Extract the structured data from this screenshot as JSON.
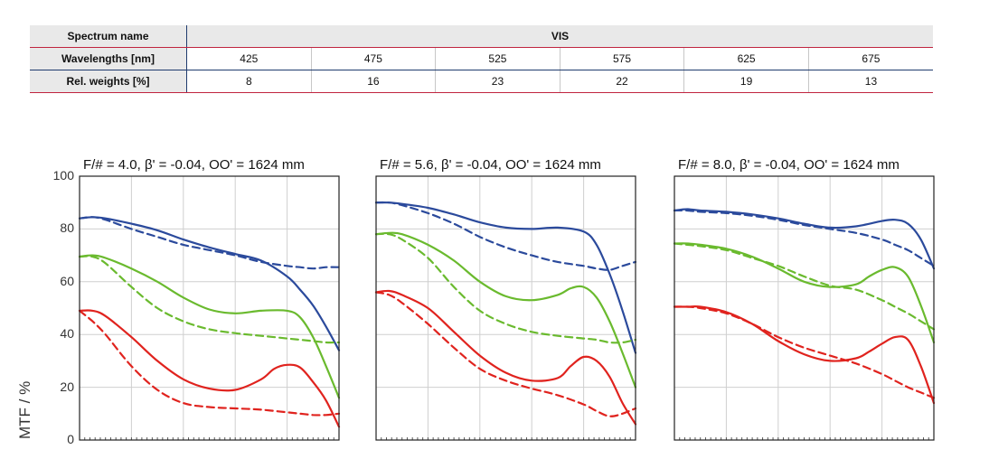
{
  "spectrum_table": {
    "header_spectrum": "Spectrum name",
    "spectrum_value": "VIS",
    "header_wavelengths": "Wavelengths [nm]",
    "wavelengths": [
      "425",
      "475",
      "525",
      "575",
      "625",
      "675"
    ],
    "header_weights": "Rel. weights [%]",
    "weights": [
      "8",
      "16",
      "23",
      "22",
      "19",
      "13"
    ]
  },
  "chart_data": [
    {
      "type": "line",
      "title": "F/# = 4.0, β' = -0.04, OO' = 1624 mm",
      "ylabel": "MTF / %",
      "yticks": [
        "100",
        "80",
        "60",
        "40",
        "20",
        "0"
      ],
      "ylim": [
        0,
        100
      ],
      "xlim": [
        0,
        1
      ],
      "grid": true,
      "series": [
        {
          "color": "#2b4a9c",
          "dash": false,
          "x": [
            0,
            0.05,
            0.1,
            0.2,
            0.3,
            0.4,
            0.5,
            0.6,
            0.7,
            0.8,
            0.85,
            0.9,
            0.95,
            1.0
          ],
          "y": [
            84,
            84.5,
            84,
            82,
            79.5,
            76,
            73,
            70.5,
            68,
            62,
            57,
            51,
            43,
            34
          ]
        },
        {
          "color": "#2b4a9c",
          "dash": true,
          "x": [
            0,
            0.05,
            0.1,
            0.2,
            0.3,
            0.4,
            0.5,
            0.6,
            0.7,
            0.8,
            0.85,
            0.9,
            0.95,
            1.0
          ],
          "y": [
            84,
            84.5,
            83.5,
            80,
            77,
            74,
            72,
            70,
            67.5,
            66,
            65.5,
            65,
            65.5,
            65.5
          ]
        },
        {
          "color": "#6aba2e",
          "dash": false,
          "x": [
            0,
            0.05,
            0.1,
            0.2,
            0.3,
            0.4,
            0.5,
            0.6,
            0.7,
            0.8,
            0.85,
            0.9,
            0.95,
            1.0
          ],
          "y": [
            69.5,
            70,
            69,
            65,
            60,
            54,
            49.5,
            48,
            49,
            49,
            46.5,
            39,
            28,
            16
          ]
        },
        {
          "color": "#6aba2e",
          "dash": true,
          "x": [
            0,
            0.05,
            0.1,
            0.2,
            0.3,
            0.4,
            0.5,
            0.6,
            0.7,
            0.8,
            0.85,
            0.9,
            0.95,
            1.0
          ],
          "y": [
            69.5,
            69.5,
            67,
            58,
            50,
            45,
            42,
            40.5,
            39.5,
            38.5,
            38,
            37.5,
            37,
            37
          ]
        },
        {
          "color": "#e0231e",
          "dash": false,
          "x": [
            0,
            0.05,
            0.1,
            0.2,
            0.3,
            0.4,
            0.5,
            0.6,
            0.7,
            0.75,
            0.8,
            0.85,
            0.9,
            0.95,
            1.0
          ],
          "y": [
            49,
            49,
            47,
            39,
            30,
            23,
            19.5,
            19,
            23,
            27,
            28.5,
            27.5,
            22,
            15,
            5
          ]
        },
        {
          "color": "#e0231e",
          "dash": true,
          "x": [
            0,
            0.05,
            0.1,
            0.2,
            0.3,
            0.4,
            0.5,
            0.6,
            0.7,
            0.8,
            0.85,
            0.9,
            0.95,
            1.0
          ],
          "y": [
            49,
            45,
            40,
            28,
            19,
            14,
            12.5,
            12,
            11.5,
            10.5,
            10,
            9.5,
            9.5,
            10
          ]
        }
      ]
    },
    {
      "type": "line",
      "title": "F/# = 5.6, β' = -0.04, OO' = 1624 mm",
      "ylabel": "MTF / %",
      "yticks": [
        "100",
        "80",
        "60",
        "40",
        "20",
        "0"
      ],
      "ylim": [
        0,
        100
      ],
      "xlim": [
        0,
        1
      ],
      "grid": true,
      "series": [
        {
          "color": "#2b4a9c",
          "dash": false,
          "x": [
            0,
            0.05,
            0.1,
            0.2,
            0.3,
            0.4,
            0.5,
            0.6,
            0.7,
            0.8,
            0.85,
            0.9,
            0.95,
            1.0
          ],
          "y": [
            90,
            90,
            89.5,
            88,
            85.5,
            82.5,
            80.5,
            80,
            80.5,
            79,
            74,
            63,
            49,
            33
          ]
        },
        {
          "color": "#2b4a9c",
          "dash": true,
          "x": [
            0,
            0.05,
            0.1,
            0.2,
            0.3,
            0.4,
            0.5,
            0.6,
            0.7,
            0.8,
            0.85,
            0.9,
            0.95,
            1.0
          ],
          "y": [
            90,
            90,
            89,
            86,
            82,
            77,
            73,
            70,
            67.5,
            66,
            65,
            64.5,
            66,
            67.5
          ]
        },
        {
          "color": "#6aba2e",
          "dash": false,
          "x": [
            0,
            0.05,
            0.1,
            0.2,
            0.3,
            0.4,
            0.5,
            0.6,
            0.7,
            0.75,
            0.8,
            0.85,
            0.9,
            0.95,
            1.0
          ],
          "y": [
            78,
            78.5,
            78,
            74,
            68,
            60,
            54.5,
            53,
            55,
            57.5,
            58,
            54,
            45,
            33,
            20
          ]
        },
        {
          "color": "#6aba2e",
          "dash": true,
          "x": [
            0,
            0.05,
            0.1,
            0.2,
            0.3,
            0.4,
            0.5,
            0.6,
            0.7,
            0.8,
            0.85,
            0.9,
            0.95,
            1.0
          ],
          "y": [
            78,
            78,
            76,
            69,
            58,
            49,
            44,
            41,
            39.5,
            38.5,
            38,
            37,
            37,
            38
          ]
        },
        {
          "color": "#e0231e",
          "dash": false,
          "x": [
            0,
            0.05,
            0.1,
            0.2,
            0.3,
            0.4,
            0.5,
            0.6,
            0.7,
            0.75,
            0.8,
            0.85,
            0.9,
            0.95,
            1.0
          ],
          "y": [
            56,
            56.5,
            55,
            50,
            41,
            32,
            25.5,
            22.5,
            23.5,
            28,
            31.5,
            30,
            24,
            14,
            6
          ]
        },
        {
          "color": "#e0231e",
          "dash": true,
          "x": [
            0,
            0.05,
            0.1,
            0.2,
            0.3,
            0.4,
            0.5,
            0.6,
            0.7,
            0.8,
            0.85,
            0.9,
            0.95,
            1.0
          ],
          "y": [
            56,
            55,
            52,
            44,
            35,
            27,
            22.5,
            19.5,
            17,
            13.5,
            11,
            9,
            10,
            12
          ]
        }
      ]
    },
    {
      "type": "line",
      "title": "F/# = 8.0, β' = -0.04, OO' = 1624 mm",
      "ylabel": "MTF / %",
      "yticks": [
        "100",
        "80",
        "60",
        "40",
        "20",
        "0"
      ],
      "ylim": [
        0,
        100
      ],
      "xlim": [
        0,
        1
      ],
      "grid": true,
      "series": [
        {
          "color": "#2b4a9c",
          "dash": false,
          "x": [
            0,
            0.05,
            0.1,
            0.2,
            0.3,
            0.4,
            0.5,
            0.6,
            0.7,
            0.8,
            0.85,
            0.9,
            0.95,
            1.0
          ],
          "y": [
            87,
            87.5,
            87,
            86.5,
            85.5,
            84,
            82,
            80.5,
            81,
            83,
            83.5,
            82,
            76,
            65
          ]
        },
        {
          "color": "#2b4a9c",
          "dash": true,
          "x": [
            0,
            0.05,
            0.1,
            0.2,
            0.3,
            0.4,
            0.5,
            0.6,
            0.7,
            0.8,
            0.85,
            0.9,
            0.95,
            1.0
          ],
          "y": [
            87,
            87,
            86.5,
            86,
            85,
            83.5,
            81.5,
            80,
            78.5,
            76,
            74,
            72,
            69,
            66
          ]
        },
        {
          "color": "#6aba2e",
          "dash": false,
          "x": [
            0,
            0.05,
            0.1,
            0.2,
            0.3,
            0.4,
            0.5,
            0.6,
            0.7,
            0.75,
            0.8,
            0.85,
            0.9,
            0.95,
            1.0
          ],
          "y": [
            74.5,
            74.5,
            74,
            72.5,
            69.5,
            65,
            60,
            58,
            59,
            62,
            64.5,
            65.5,
            62,
            51,
            37
          ]
        },
        {
          "color": "#6aba2e",
          "dash": true,
          "x": [
            0,
            0.05,
            0.1,
            0.2,
            0.3,
            0.4,
            0.5,
            0.6,
            0.7,
            0.8,
            0.85,
            0.9,
            0.95,
            1.0
          ],
          "y": [
            74.5,
            74,
            73.5,
            72,
            69,
            66,
            62,
            58.5,
            57,
            53,
            50.5,
            48,
            45,
            42
          ]
        },
        {
          "color": "#e0231e",
          "dash": false,
          "x": [
            0,
            0.05,
            0.1,
            0.2,
            0.3,
            0.4,
            0.5,
            0.6,
            0.7,
            0.75,
            0.8,
            0.85,
            0.9,
            0.95,
            1.0
          ],
          "y": [
            50.5,
            50.5,
            50.5,
            48.5,
            44,
            37.5,
            32.5,
            30,
            31,
            33.5,
            36.5,
            39,
            38,
            28,
            14
          ]
        },
        {
          "color": "#e0231e",
          "dash": true,
          "x": [
            0,
            0.05,
            0.1,
            0.2,
            0.3,
            0.4,
            0.5,
            0.6,
            0.7,
            0.8,
            0.85,
            0.9,
            0.95,
            1.0
          ],
          "y": [
            50.5,
            50.5,
            50,
            48,
            44,
            39,
            35,
            32,
            29,
            25,
            22.5,
            20,
            18,
            16
          ]
        }
      ]
    }
  ]
}
